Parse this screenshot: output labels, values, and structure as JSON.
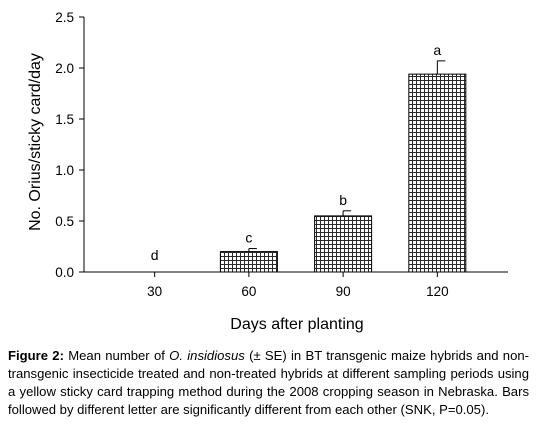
{
  "chart_data": {
    "type": "bar",
    "categories": [
      "30",
      "60",
      "90",
      "120"
    ],
    "values": [
      0.0,
      0.2,
      0.55,
      1.94
    ],
    "errors": [
      0.0,
      0.03,
      0.05,
      0.13
    ],
    "letters": [
      "d",
      "c",
      "b",
      "a"
    ],
    "xlabel": "Days after planting",
    "ylabel": "No. Orius/sticky card/day",
    "ylim": [
      0,
      2.5
    ],
    "yticks": [
      "0.0",
      "0.5",
      "1.0",
      "1.5",
      "2.0",
      "2.5"
    ],
    "bar_fill": "checkered grid pattern",
    "grid": false,
    "legend": "none"
  },
  "caption": {
    "label": "Figure 2:",
    "text_a": "Mean number of",
    "species": "O. insidiosus",
    "text_b": "(± SE) in BT transgenic maize hybrids and non-transgenic insecticide treated and non-treated hybrids at different sampling periods using a yellow sticky card trapping method during the 2008 cropping season in Nebraska. Bars followed by different letter are significantly different from each other (SNK, P=0.05)."
  }
}
